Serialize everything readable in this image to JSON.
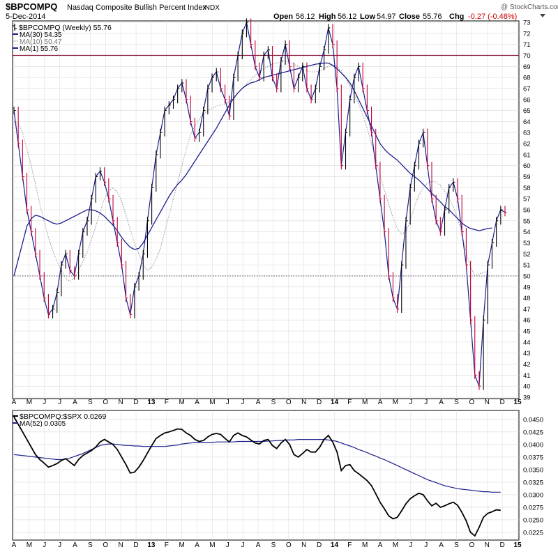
{
  "header": {
    "symbol": "$BPCOMPQ",
    "name": "Nasdaq Composite Bullish Percent Index",
    "exchange": "INDX",
    "date": "5-Dec-2014",
    "open_label": "Open",
    "open": "56.12",
    "high_label": "High",
    "high": "56.12",
    "low_label": "Low",
    "low": "54.97",
    "close_label": "Close",
    "close": "55.76",
    "chg_label": "Chg",
    "chg": "-0.27 (-0.48%)",
    "watermark": "@ StockCharts.com"
  },
  "colors": {
    "up_bar": "#000000",
    "down_bar": "#c0003a",
    "ma30": "#1a1f8c",
    "ma10": "#999999",
    "ref_line": "#8b1a3a",
    "ratio_line": "#000000",
    "ma52": "#1a1f8c",
    "chg_negative": "#cc0000",
    "grid": "#d9d9d9"
  },
  "legend_top": [
    {
      "key": "price",
      "text": "$BPCOMPQ (Weekly) 55.76"
    },
    {
      "key": "ma30",
      "text": "MA(30) 54.35"
    },
    {
      "key": "ma10",
      "text": "MA(10) 50.47"
    },
    {
      "key": "ma1",
      "text": "MA(1) 55.76"
    }
  ],
  "legend_bottom": [
    {
      "key": "ratio",
      "text": "$BPCOMPQ:$SPX 0.0269"
    },
    {
      "key": "ma52",
      "text": "MA(52) 0.0305"
    }
  ],
  "x_axis_labels": [
    "A",
    "M",
    "J",
    "J",
    "A",
    "S",
    "O",
    "N",
    "D",
    "13",
    "F",
    "M",
    "A",
    "M",
    "J",
    "J",
    "A",
    "S",
    "O",
    "N",
    "D",
    "14",
    "F",
    "M",
    "A",
    "M",
    "J",
    "J",
    "A",
    "S",
    "O",
    "N",
    "D",
    "15"
  ],
  "chart_data": [
    {
      "type": "line",
      "title": "$BPCOMPQ Nasdaq Composite Bullish Percent Index INDX",
      "period": "Weekly",
      "ylim": [
        39,
        73
      ],
      "y_ticks": [
        39,
        40,
        41,
        42,
        43,
        44,
        45,
        46,
        47,
        48,
        49,
        50,
        51,
        52,
        53,
        54,
        55,
        56,
        57,
        58,
        59,
        60,
        61,
        62,
        63,
        64,
        65,
        66,
        67,
        68,
        69,
        70,
        71,
        72,
        73
      ],
      "reference_lines": [
        70,
        50
      ],
      "grid": true,
      "legend_position": "top-left",
      "series": [
        {
          "name": "$BPCOMPQ (Weekly)",
          "style": "hlc-bars",
          "last": 55.76,
          "values": [
            65,
            62,
            59,
            56,
            54,
            52,
            50,
            48,
            46.5,
            47,
            48.5,
            51,
            52,
            50.5,
            50,
            52,
            54,
            55,
            57,
            59,
            59.5,
            58.5,
            57,
            55,
            53,
            51,
            48,
            46.5,
            49,
            50,
            52,
            55,
            58,
            61,
            63,
            65,
            65.5,
            66,
            67,
            67.5,
            66,
            64,
            62.5,
            63,
            65,
            67,
            68,
            68.5,
            67,
            66,
            64.5,
            68,
            70,
            72,
            73,
            71,
            69,
            68,
            70,
            70.5,
            68,
            67,
            69.5,
            71,
            69,
            67,
            68,
            69,
            67,
            66,
            67,
            69,
            70.5,
            72.5,
            71,
            67,
            60,
            63,
            66,
            68,
            69,
            67,
            65,
            63,
            60,
            57,
            54,
            50,
            48,
            47,
            51,
            55,
            58,
            60,
            62,
            63,
            60,
            57,
            55,
            54,
            56,
            58,
            58.5,
            57,
            54,
            51,
            46,
            41,
            40,
            46,
            51,
            53,
            55,
            56,
            55.76
          ]
        },
        {
          "name": "MA(30)",
          "style": "line",
          "last": 54.35,
          "values": [
            50,
            51.5,
            53,
            54.5,
            55.2,
            55.5,
            55.4,
            55.2,
            55,
            54.8,
            54.7,
            54.8,
            55,
            55.2,
            55.4,
            55.6,
            55.8,
            56,
            56,
            55.9,
            55.7,
            55.4,
            55,
            54.6,
            54.1,
            53.5,
            53,
            52.6,
            52.4,
            52.5,
            53,
            53.7,
            54.4,
            55.1,
            55.8,
            56.5,
            57.2,
            57.8,
            58.3,
            58.7,
            59.2,
            59.8,
            60.4,
            61,
            61.6,
            62.2,
            62.8,
            63.4,
            64.1,
            64.8,
            65.5,
            66.1,
            66.6,
            67,
            67.3,
            67.5,
            67.6,
            67.8,
            68,
            68.1,
            68.2,
            68.3,
            68.4,
            68.5,
            68.6,
            68.7,
            68.8,
            68.9,
            69,
            69.1,
            69.2,
            69.25,
            69.3,
            69.3,
            69.1,
            68.8,
            68.4,
            68,
            67.5,
            66.8,
            66,
            65.2,
            64.4,
            63.6,
            62.8,
            62,
            61.5,
            61.1,
            60.8,
            60.5,
            60.1,
            59.7,
            59.3,
            59,
            58.7,
            58.3,
            57.9,
            57.5,
            57.1,
            56.7,
            56.3,
            56,
            55.6,
            55.2,
            54.8,
            54.5,
            54.3,
            54.2,
            54.1,
            54.2,
            54.3,
            54.35
          ]
        },
        {
          "name": "MA(10)",
          "style": "dotted",
          "last": 50.47,
          "values": [
            64,
            63.8,
            63,
            61.5,
            60,
            58.3,
            56.5,
            55,
            53.5,
            52.3,
            51.3,
            50.5,
            49.8,
            49.5,
            49.8,
            50.5,
            51.3,
            52.2,
            53.3,
            54.5,
            55.8,
            57,
            57.7,
            58,
            57.6,
            56.8,
            55.5,
            54.2,
            53,
            52,
            51,
            50.5,
            50.8,
            51.5,
            52.5,
            54,
            55.5,
            57,
            58.5,
            60,
            61.5,
            62.8,
            63.6,
            64.2,
            64.7,
            65,
            65.2,
            65.4,
            65.5,
            65.6,
            65.8,
            66.2,
            66.6,
            67,
            67.4,
            67.8,
            68.2,
            68.5,
            68.8,
            69,
            69.2,
            69.3,
            69.4,
            69.5,
            69.4,
            69.2,
            69,
            68.8,
            68.6,
            68.5,
            68.5,
            68.6,
            68.8,
            69,
            69.1,
            69,
            68.6,
            68,
            67.2,
            66.4,
            65.6,
            64.6,
            63.4,
            62,
            60.6,
            59.2,
            57.8,
            56.5,
            55.3,
            54.3,
            53.8,
            54,
            55,
            56.3,
            57.3,
            58,
            58.4,
            58.6,
            58.5,
            58.2,
            57.7,
            57,
            56.3,
            55.2,
            53.8,
            52.2,
            50.8,
            50,
            50.2,
            50.3,
            50.47
          ]
        }
      ]
    },
    {
      "type": "line",
      "title": "$BPCOMPQ:$SPX",
      "ylim": [
        0.02125,
        0.0465
      ],
      "y_ticks": [
        0.0225,
        0.025,
        0.0275,
        0.03,
        0.0325,
        0.035,
        0.0375,
        0.04,
        0.0425,
        0.045
      ],
      "grid": true,
      "legend_position": "top-left",
      "series": [
        {
          "name": "$BPCOMPQ:$SPX",
          "last": 0.0269,
          "values": [
            0.0455,
            0.044,
            0.0425,
            0.041,
            0.0395,
            0.038,
            0.037,
            0.0363,
            0.0355,
            0.0358,
            0.0362,
            0.0368,
            0.0372,
            0.0365,
            0.0358,
            0.037,
            0.0378,
            0.0383,
            0.0388,
            0.0395,
            0.0405,
            0.041,
            0.0405,
            0.04,
            0.039,
            0.0375,
            0.036,
            0.0343,
            0.0345,
            0.0355,
            0.0368,
            0.0383,
            0.0398,
            0.0412,
            0.0418,
            0.0423,
            0.0425,
            0.0428,
            0.0431,
            0.043,
            0.0423,
            0.0418,
            0.041,
            0.0406,
            0.0408,
            0.0415,
            0.042,
            0.0422,
            0.042,
            0.0412,
            0.0405,
            0.0418,
            0.0423,
            0.0418,
            0.0415,
            0.0409,
            0.0403,
            0.0401,
            0.0408,
            0.041,
            0.0398,
            0.0392,
            0.0403,
            0.041,
            0.04,
            0.038,
            0.0375,
            0.0382,
            0.039,
            0.0385,
            0.0385,
            0.0395,
            0.041,
            0.0418,
            0.0405,
            0.0385,
            0.0348,
            0.0358,
            0.036,
            0.0348,
            0.0342,
            0.0335,
            0.0328,
            0.0318,
            0.0302,
            0.0285,
            0.0272,
            0.0258,
            0.0252,
            0.0255,
            0.0268,
            0.0282,
            0.0292,
            0.0298,
            0.0303,
            0.03,
            0.0288,
            0.0278,
            0.0283,
            0.0275,
            0.0278,
            0.0282,
            0.0285,
            0.0279,
            0.0265,
            0.0248,
            0.0225,
            0.0218,
            0.0235,
            0.0255,
            0.0263,
            0.0266,
            0.027,
            0.0269
          ]
        },
        {
          "name": "MA(52)",
          "last": 0.0305,
          "values": [
            0.038,
            0.0379,
            0.0378,
            0.0377,
            0.0376,
            0.0375,
            0.0374,
            0.0373,
            0.0372,
            0.0371,
            0.037,
            0.037,
            0.0371,
            0.0373,
            0.0376,
            0.0379,
            0.0382,
            0.0386,
            0.039,
            0.0394,
            0.0398,
            0.04,
            0.0401,
            0.0401,
            0.04,
            0.0399,
            0.0398,
            0.0398,
            0.0397,
            0.0397,
            0.0396,
            0.0396,
            0.0396,
            0.0396,
            0.0396,
            0.0396,
            0.0397,
            0.0398,
            0.0399,
            0.0401,
            0.0402,
            0.0403,
            0.0404,
            0.0404,
            0.0404,
            0.0404,
            0.0404,
            0.0405,
            0.0405,
            0.0405,
            0.0405,
            0.0405,
            0.0406,
            0.0406,
            0.0406,
            0.0406,
            0.0406,
            0.0406,
            0.0406,
            0.0407,
            0.0407,
            0.0408,
            0.0408,
            0.0409,
            0.0409,
            0.0409,
            0.041,
            0.041,
            0.041,
            0.041,
            0.041,
            0.041,
            0.041,
            0.0409,
            0.0408,
            0.0406,
            0.0403,
            0.04,
            0.0397,
            0.0394,
            0.039,
            0.0387,
            0.0384,
            0.038,
            0.0377,
            0.0373,
            0.037,
            0.0366,
            0.0362,
            0.0358,
            0.0354,
            0.035,
            0.0346,
            0.0342,
            0.0338,
            0.0334,
            0.033,
            0.0327,
            0.0324,
            0.0321,
            0.0318,
            0.0316,
            0.0314,
            0.0312,
            0.0311,
            0.031,
            0.0309,
            0.0308,
            0.0307,
            0.0306,
            0.0306,
            0.0305,
            0.0305,
            0.0305
          ]
        }
      ]
    }
  ]
}
